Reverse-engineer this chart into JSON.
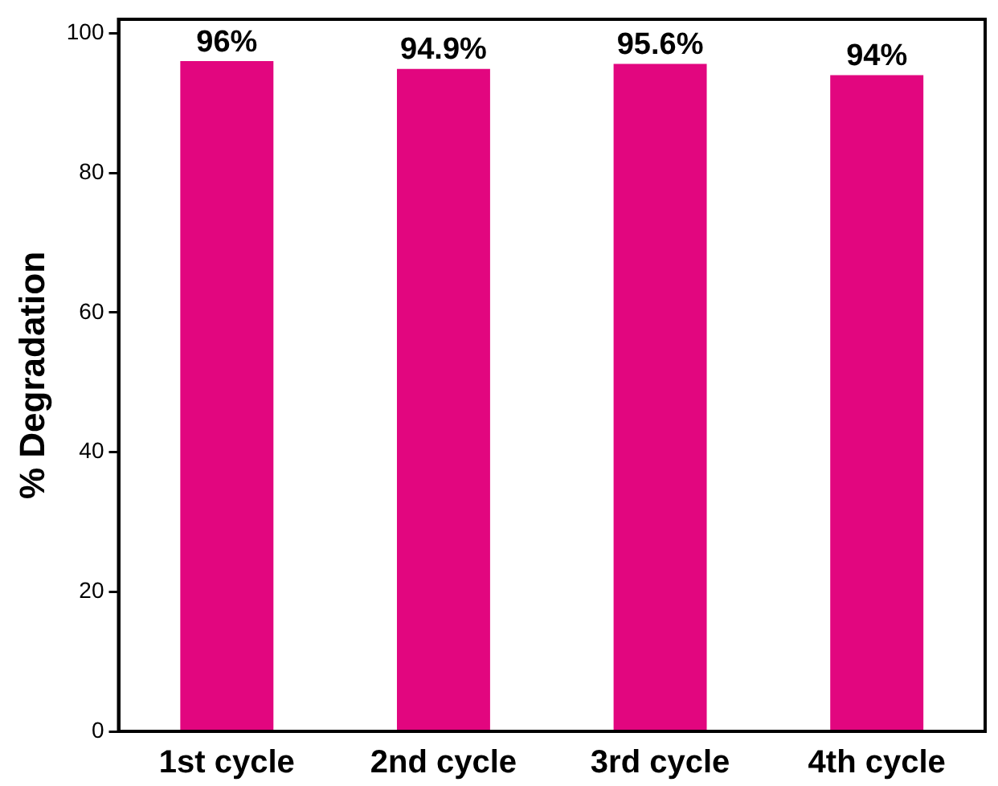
{
  "chart_data": {
    "type": "bar",
    "ylabel": "% Degradation",
    "categories": [
      "1st cycle",
      "2nd cycle",
      "3rd cycle",
      "4th cycle"
    ],
    "values": [
      96,
      94.9,
      95.6,
      94
    ],
    "value_labels": [
      "96%",
      "94.9%",
      "95.6%",
      "94%"
    ],
    "color": "#e2067f",
    "ylim": [
      0,
      102
    ],
    "yticks": [
      0,
      20,
      40,
      60,
      80,
      100
    ],
    "grid": false,
    "legend": false
  }
}
